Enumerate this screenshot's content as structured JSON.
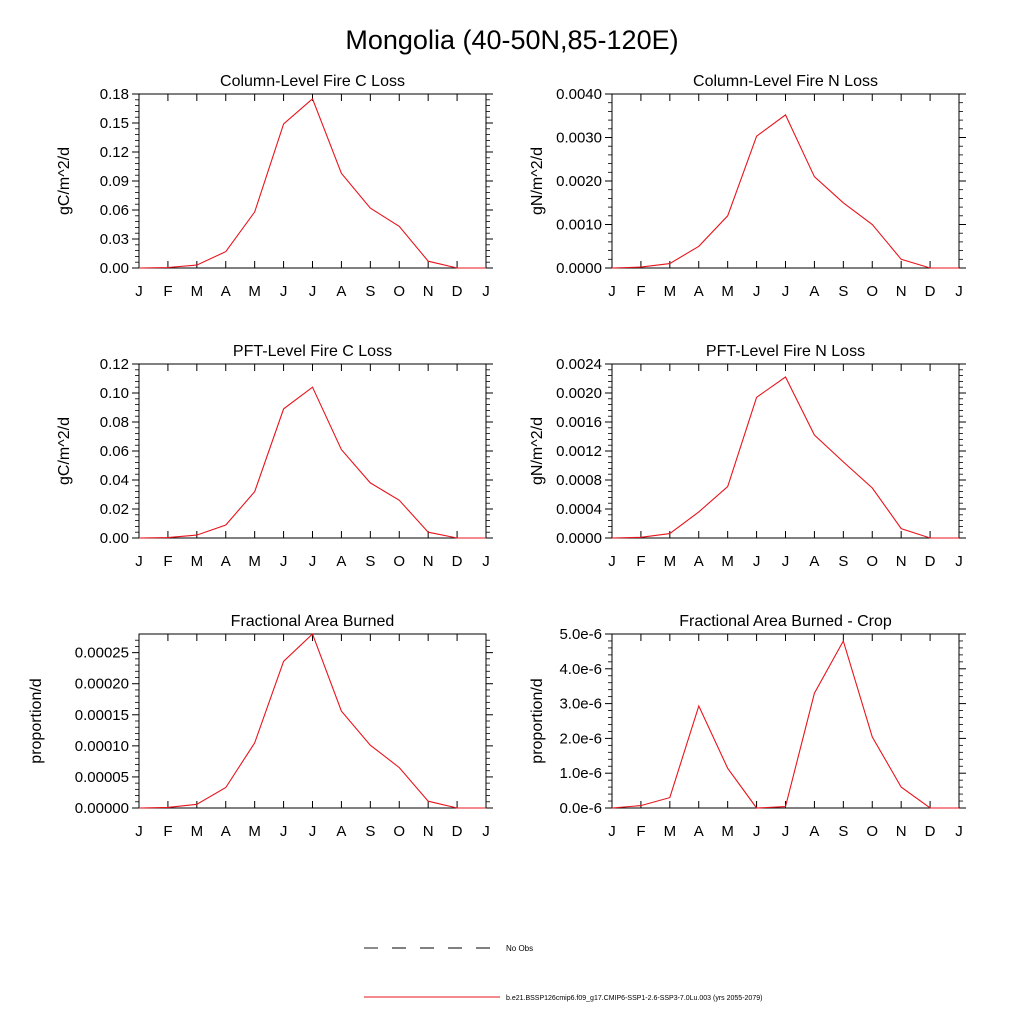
{
  "title": "Mongolia (40-50N,85-120E)",
  "months": [
    "J",
    "F",
    "M",
    "A",
    "M",
    "J",
    "J",
    "A",
    "S",
    "O",
    "N",
    "D",
    "J"
  ],
  "series_color": "#e8141c",
  "legend": {
    "obs_label": "No Obs",
    "model_label": "b.e21.BSSP126cmip6.f09_g17.CMIP6-SSP1-2.6-SSP3-7.0Lu.003 (yrs 2055-2079)"
  },
  "chart_data": [
    {
      "type": "line",
      "title": "Column-Level Fire C Loss",
      "ylabel": "gC/m^2/d",
      "ylim": [
        0,
        0.18
      ],
      "yticks": [
        "0.00",
        "0.03",
        "0.06",
        "0.09",
        "0.12",
        "0.15",
        "0.18"
      ],
      "x": [
        1,
        2,
        3,
        4,
        5,
        6,
        7,
        8,
        9,
        10,
        11,
        12,
        13
      ],
      "values": [
        0.0,
        0.0005,
        0.003,
        0.017,
        0.058,
        0.149,
        0.175,
        0.098,
        0.062,
        0.043,
        0.007,
        0.0,
        0.0
      ]
    },
    {
      "type": "line",
      "title": "Column-Level Fire N Loss",
      "ylabel": "gN/m^2/d",
      "ylim": [
        0,
        0.004
      ],
      "yticks": [
        "0.0000",
        "0.0010",
        "0.0020",
        "0.0030",
        "0.0040"
      ],
      "x": [
        1,
        2,
        3,
        4,
        5,
        6,
        7,
        8,
        9,
        10,
        11,
        12,
        13
      ],
      "values": [
        0.0,
        2e-05,
        0.0001,
        0.0005,
        0.0012,
        0.00303,
        0.00352,
        0.0021,
        0.0015,
        0.001,
        0.0002,
        0.0,
        0.0
      ]
    },
    {
      "type": "line",
      "title": "PFT-Level Fire C Loss",
      "ylabel": "gC/m^2/d",
      "ylim": [
        0,
        0.12
      ],
      "yticks": [
        "0.00",
        "0.02",
        "0.04",
        "0.06",
        "0.08",
        "0.10",
        "0.12"
      ],
      "x": [
        1,
        2,
        3,
        4,
        5,
        6,
        7,
        8,
        9,
        10,
        11,
        12,
        13
      ],
      "values": [
        0.0,
        0.0003,
        0.002,
        0.009,
        0.032,
        0.089,
        0.104,
        0.061,
        0.038,
        0.026,
        0.004,
        0.0,
        0.0
      ]
    },
    {
      "type": "line",
      "title": "PFT-Level Fire N Loss",
      "ylabel": "gN/m^2/d",
      "ylim": [
        0,
        0.0024
      ],
      "yticks": [
        "0.0000",
        "0.0004",
        "0.0008",
        "0.0012",
        "0.0016",
        "0.0020",
        "0.0024"
      ],
      "x": [
        1,
        2,
        3,
        4,
        5,
        6,
        7,
        8,
        9,
        10,
        11,
        12,
        13
      ],
      "values": [
        0.0,
        1e-05,
        6e-05,
        0.00036,
        0.00071,
        0.00194,
        0.00222,
        0.00142,
        0.00105,
        0.00069,
        0.00013,
        0.0,
        0.0
      ]
    },
    {
      "type": "line",
      "title": "Fractional Area Burned",
      "ylabel": "proportion/d",
      "ylim": [
        0,
        0.00028
      ],
      "yticks": [
        "0.00000",
        "0.00005",
        "0.00010",
        "0.00015",
        "0.00020",
        "0.00025"
      ],
      "ytick_values": [
        0,
        5e-05,
        0.0001,
        0.00015,
        0.0002,
        0.00025
      ],
      "x": [
        1,
        2,
        3,
        4,
        5,
        6,
        7,
        8,
        9,
        10,
        11,
        12,
        13
      ],
      "values": [
        0.0,
        1e-06,
        6e-06,
        3.3e-05,
        0.000105,
        0.000236,
        0.00028,
        0.000156,
        0.000101,
        6.5e-05,
        1.1e-05,
        0.0,
        0.0
      ]
    },
    {
      "type": "line",
      "title": "Fractional Area Burned - Crop",
      "ylabel": "proportion/d",
      "ylim": [
        0,
        5e-06
      ],
      "yticks": [
        "0.0e-6",
        "1.0e-6",
        "2.0e-6",
        "3.0e-6",
        "4.0e-6",
        "5.0e-6"
      ],
      "x": [
        1,
        2,
        3,
        4,
        5,
        6,
        7,
        8,
        9,
        10,
        11,
        12,
        13
      ],
      "values": [
        0.0,
        7e-08,
        3e-07,
        2.93e-06,
        1.14e-06,
        0.0,
        4e-08,
        3.3e-06,
        4.8e-06,
        2.04e-06,
        6e-07,
        0.0,
        0.0
      ]
    }
  ]
}
